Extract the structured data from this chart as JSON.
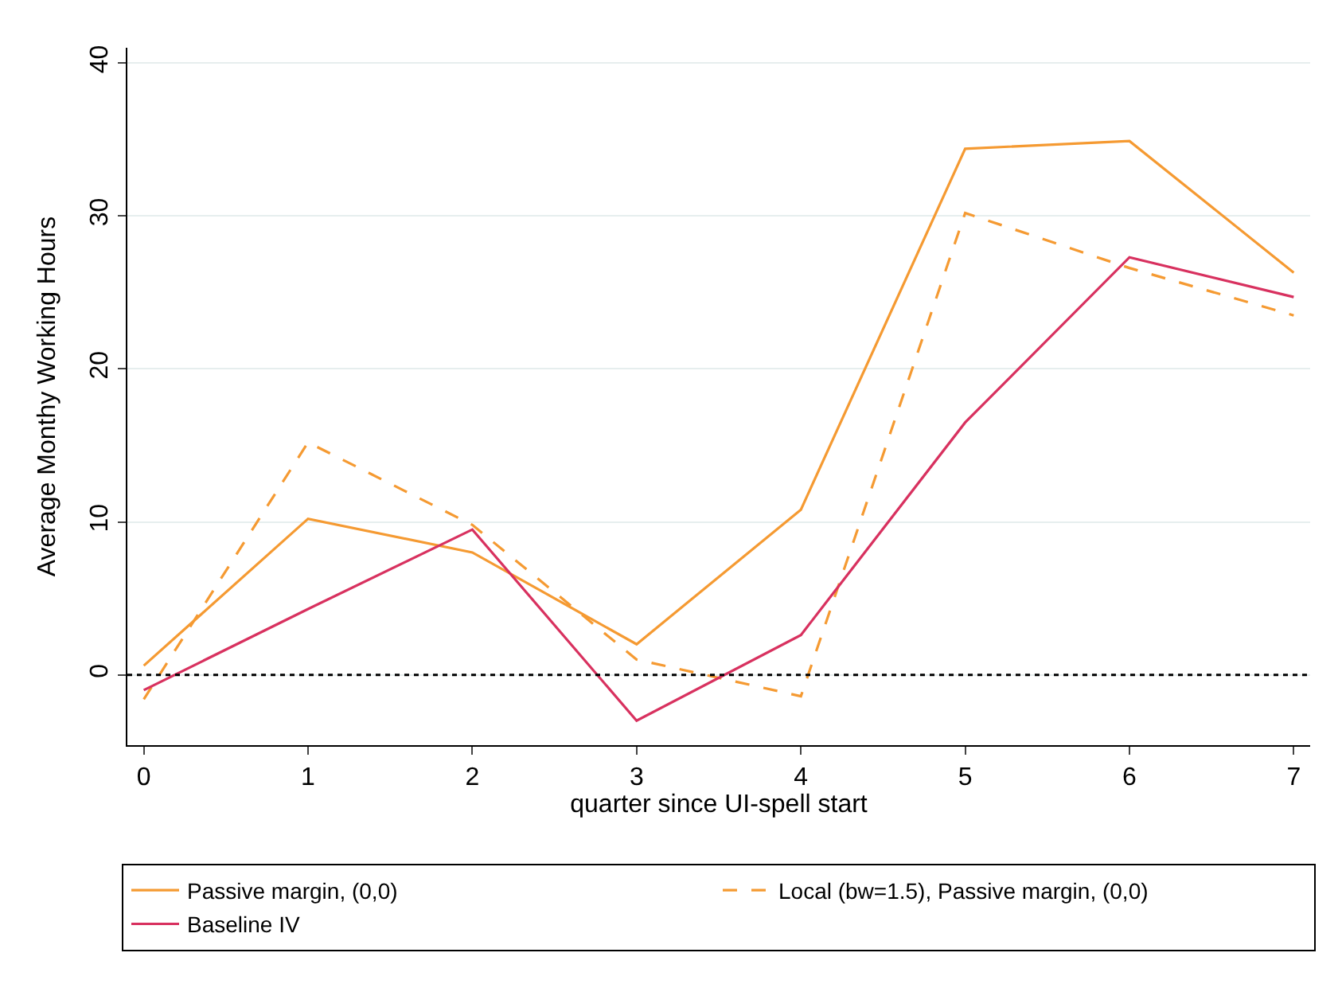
{
  "chart_data": {
    "type": "line",
    "xlabel": "quarter since UI-spell start",
    "ylabel": "Average Monthy Working Hours",
    "x": [
      0,
      1,
      2,
      3,
      4,
      5,
      6,
      7
    ],
    "series": [
      {
        "name": "Passive margin, (0,0)",
        "color": "#f59a32",
        "line_style": "solid",
        "values": [
          0.6,
          10.2,
          8.0,
          2.0,
          10.8,
          34.4,
          34.9,
          26.3
        ]
      },
      {
        "name": "Local (bw=1.5), Passive margin, (0,0)",
        "color": "#f59a32",
        "line_style": "dashed",
        "values": [
          -1.6,
          15.2,
          9.8,
          1.0,
          -1.4,
          30.2,
          26.6,
          23.5
        ]
      },
      {
        "name": "Baseline IV",
        "color": "#d8315f",
        "line_style": "solid",
        "values": [
          -1.0,
          4.3,
          9.5,
          -3.0,
          2.6,
          16.5,
          27.3,
          24.7
        ]
      }
    ],
    "xlim": [
      -0.1,
      7.1
    ],
    "xticks": [
      0,
      1,
      2,
      3,
      4,
      5,
      6,
      7
    ],
    "ylim": [
      -4.6,
      41
    ],
    "yticks": [
      0,
      10,
      20,
      30,
      40
    ],
    "ref_lines": [
      {
        "axis": "y",
        "value": 0,
        "color": "#000000",
        "line_style": "dotted"
      }
    ],
    "grid": "y",
    "legend": "bottom",
    "marker": "none"
  }
}
